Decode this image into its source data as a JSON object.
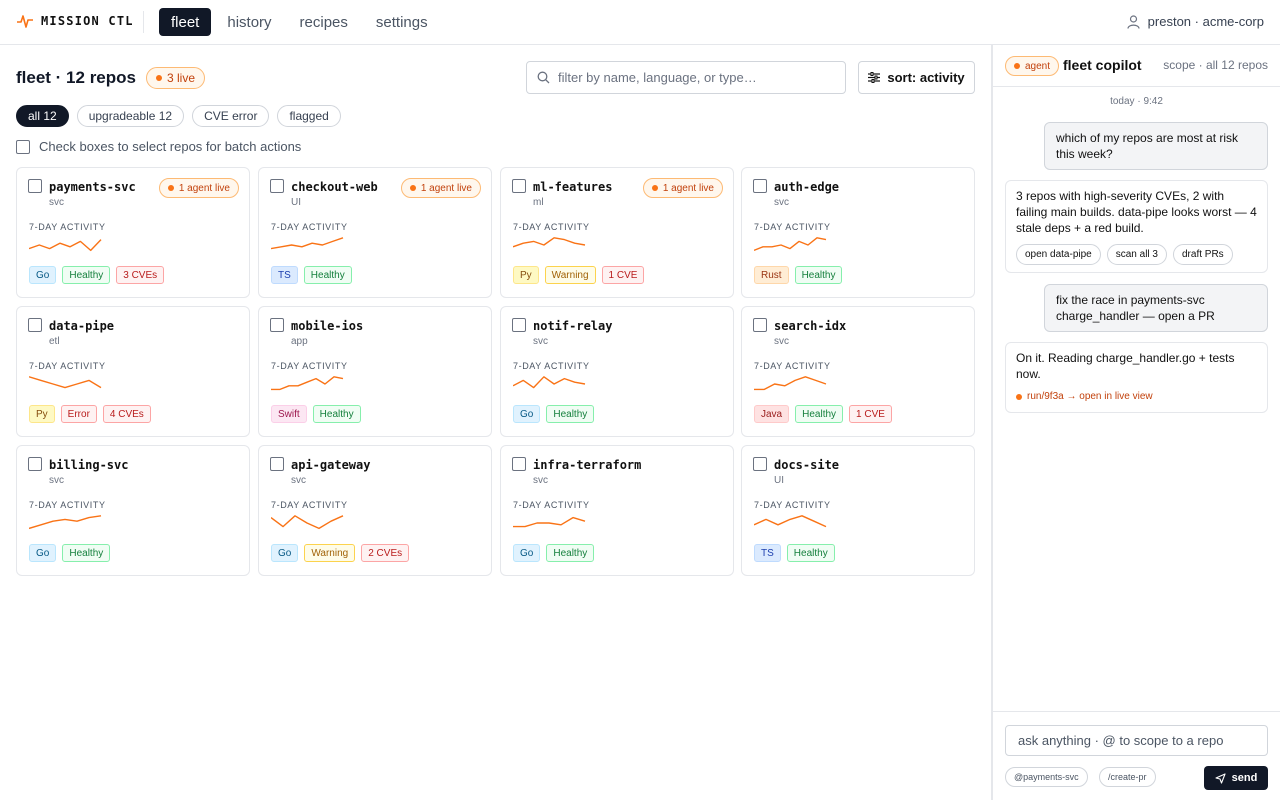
{
  "app": {
    "name": "MISSION CTL"
  },
  "nav": {
    "tabs": [
      {
        "label": "fleet"
      },
      {
        "label": "history"
      },
      {
        "label": "recipes"
      },
      {
        "label": "settings"
      }
    ]
  },
  "user": {
    "label": "preston · acme-corp"
  },
  "colors": {
    "accent": "#f97316",
    "dark": "#111827"
  },
  "header": {
    "title": "fleet · 12 repos",
    "live_badge": "3 live",
    "search_placeholder": "filter by name, language, or type…",
    "sort_label": "sort: activity"
  },
  "filters": [
    {
      "label": "all 12"
    },
    {
      "label": "upgradeable 12"
    },
    {
      "label": "CVE error"
    },
    {
      "label": "flagged"
    }
  ],
  "batch_hint": "Check boxes to select repos for batch actions",
  "activity_label": "7-DAY ACTIVITY",
  "repos": [
    {
      "name": "payments-svc",
      "type": "svc",
      "agent": "1 agent live",
      "activity": [
        3,
        5,
        3,
        6,
        4,
        7,
        2,
        8
      ],
      "tags": [
        {
          "text": "Go",
          "kind": "go"
        },
        {
          "text": "Healthy",
          "kind": "healthy"
        },
        {
          "text": "3 CVEs",
          "kind": "cve"
        }
      ]
    },
    {
      "name": "checkout-web",
      "type": "UI",
      "agent": "1 agent live",
      "activity": [
        3,
        4,
        5,
        4,
        6,
        5,
        7,
        9
      ],
      "tags": [
        {
          "text": "TS",
          "kind": "ts"
        },
        {
          "text": "Healthy",
          "kind": "healthy"
        }
      ]
    },
    {
      "name": "ml-features",
      "type": "ml",
      "agent": "1 agent live",
      "activity": [
        4,
        6,
        7,
        5,
        9,
        8,
        6,
        5
      ],
      "tags": [
        {
          "text": "Py",
          "kind": "py"
        },
        {
          "text": "Warning",
          "kind": "warning"
        },
        {
          "text": "1 CVE",
          "kind": "cve"
        }
      ]
    },
    {
      "name": "auth-edge",
      "type": "svc",
      "agent": "",
      "activity": [
        2,
        4,
        4,
        5,
        3,
        7,
        5,
        9,
        8
      ],
      "tags": [
        {
          "text": "Rust",
          "kind": "rust"
        },
        {
          "text": "Healthy",
          "kind": "healthy"
        }
      ]
    },
    {
      "name": "data-pipe",
      "type": "etl",
      "agent": "",
      "activity": [
        9,
        7,
        5,
        3,
        5,
        7,
        3
      ],
      "tags": [
        {
          "text": "Py",
          "kind": "py"
        },
        {
          "text": "Error",
          "kind": "error"
        },
        {
          "text": "4 CVEs",
          "kind": "cve"
        }
      ]
    },
    {
      "name": "mobile-ios",
      "type": "app",
      "agent": "",
      "activity": [
        2,
        2,
        4,
        4,
        6,
        8,
        5,
        9,
        8
      ],
      "tags": [
        {
          "text": "Swift",
          "kind": "swift"
        },
        {
          "text": "Healthy",
          "kind": "healthy"
        }
      ]
    },
    {
      "name": "notif-relay",
      "type": "svc",
      "agent": "",
      "activity": [
        4,
        7,
        3,
        9,
        5,
        8,
        6,
        5
      ],
      "tags": [
        {
          "text": "Go",
          "kind": "go"
        },
        {
          "text": "Healthy",
          "kind": "healthy"
        }
      ]
    },
    {
      "name": "search-idx",
      "type": "svc",
      "agent": "",
      "activity": [
        2,
        2,
        5,
        4,
        7,
        9,
        7,
        5
      ],
      "tags": [
        {
          "text": "Java",
          "kind": "java"
        },
        {
          "text": "Healthy",
          "kind": "healthy"
        },
        {
          "text": "1 CVE",
          "kind": "cve"
        }
      ]
    },
    {
      "name": "billing-svc",
      "type": "svc",
      "agent": "",
      "activity": [
        2,
        4,
        6,
        7,
        6,
        8,
        9
      ],
      "tags": [
        {
          "text": "Go",
          "kind": "go"
        },
        {
          "text": "Healthy",
          "kind": "healthy"
        }
      ]
    },
    {
      "name": "api-gateway",
      "type": "svc",
      "agent": "",
      "activity": [
        8,
        3,
        9,
        5,
        2,
        6,
        9
      ],
      "tags": [
        {
          "text": "Go",
          "kind": "go"
        },
        {
          "text": "Warning",
          "kind": "warning"
        },
        {
          "text": "2 CVEs",
          "kind": "cve"
        }
      ]
    },
    {
      "name": "infra-terraform",
      "type": "svc",
      "agent": "",
      "activity": [
        3,
        3,
        5,
        5,
        4,
        8,
        6
      ],
      "tags": [
        {
          "text": "Go",
          "kind": "go"
        },
        {
          "text": "Healthy",
          "kind": "healthy"
        }
      ]
    },
    {
      "name": "docs-site",
      "type": "UI",
      "agent": "",
      "activity": [
        4,
        7,
        4,
        7,
        9,
        6,
        3
      ],
      "tags": [
        {
          "text": "TS",
          "kind": "ts"
        },
        {
          "text": "Healthy",
          "kind": "healthy"
        }
      ]
    }
  ],
  "tag_styles": {
    "go": {
      "bg": "#e0f2fe",
      "fg": "#075985",
      "bd": "#bae6fd"
    },
    "ts": {
      "bg": "#dbeafe",
      "fg": "#1e40af",
      "bd": "#bfdbfe"
    },
    "py": {
      "bg": "#fef9c3",
      "fg": "#854d0e",
      "bd": "#fde68a"
    },
    "rust": {
      "bg": "#ffedd5",
      "fg": "#9a3412",
      "bd": "#fed7aa"
    },
    "swift": {
      "bg": "#fce7f3",
      "fg": "#9d174d",
      "bd": "#fbcfe8"
    },
    "java": {
      "bg": "#fee2e2",
      "fg": "#991b1b",
      "bd": "#fecaca"
    },
    "healthy": {
      "bg": "#f0fdf4",
      "fg": "#15803d",
      "bd": "#86efac"
    },
    "warning": {
      "bg": "#fefce8",
      "fg": "#a16207",
      "bd": "#fcd34d"
    },
    "error": {
      "bg": "#fef2f2",
      "fg": "#b91c1c",
      "bd": "#fca5a5"
    },
    "cve": {
      "bg": "#fef2f2",
      "fg": "#b91c1c",
      "bd": "#fca5a5"
    }
  },
  "copilot": {
    "badge": "agent",
    "title": "fleet copilot",
    "scope": "scope · all 12 repos",
    "timestamp": "today · 9:42",
    "messages": {
      "user1": "which of my repos are most at risk this week?",
      "bot1": "3 repos with high-severity CVEs, 2 with failing main builds. data-pipe looks worst — 4 stale deps + a red build.",
      "bot1_actions": [
        "open data-pipe",
        "scan all 3",
        "draft PRs"
      ],
      "user2": "fix the race in payments-svc charge_handler — open a PR",
      "bot2": "On it. Reading charge_handler.go + tests now.",
      "bot2_link": "run/9f3a → open in live view"
    },
    "composer": {
      "placeholder": "ask anything · @ to scope to a repo",
      "hint1": "@payments-svc",
      "hint2": "/create-pr",
      "send": "send"
    }
  }
}
